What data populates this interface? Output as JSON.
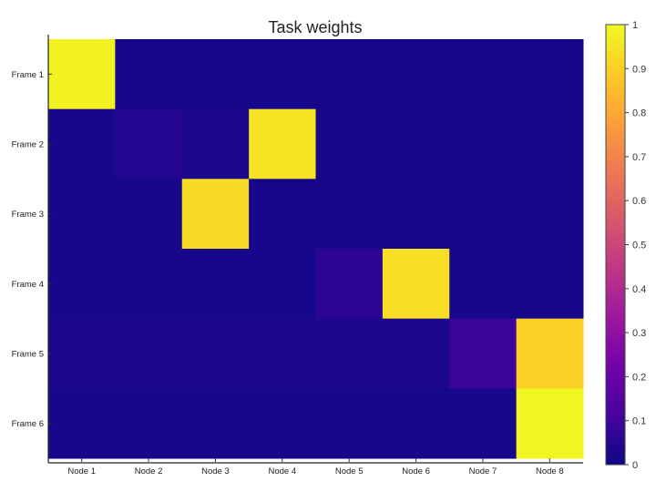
{
  "chart_data": {
    "type": "heatmap",
    "title": "Task weights",
    "x_categories": [
      "Node 1",
      "Node 2",
      "Node 3",
      "Node 4",
      "Node 5",
      "Node 6",
      "Node 7",
      "Node 8"
    ],
    "y_categories": [
      "Frame 1",
      "Frame 2",
      "Frame 3",
      "Frame 4",
      "Frame 5",
      "Frame 6"
    ],
    "values": [
      [
        0.98,
        0.02,
        0.02,
        0.02,
        0.02,
        0.02,
        0.02,
        0.02
      ],
      [
        0.02,
        0.04,
        0.03,
        0.95,
        0.02,
        0.02,
        0.02,
        0.02
      ],
      [
        0.02,
        0.02,
        0.93,
        0.02,
        0.02,
        0.02,
        0.02,
        0.02
      ],
      [
        0.02,
        0.02,
        0.02,
        0.02,
        0.06,
        0.94,
        0.02,
        0.02
      ],
      [
        0.03,
        0.03,
        0.03,
        0.03,
        0.03,
        0.03,
        0.09,
        0.9
      ],
      [
        0.02,
        0.02,
        0.02,
        0.02,
        0.02,
        0.02,
        0.02,
        0.99
      ]
    ],
    "colorscale": "plasma",
    "zlim": [
      0,
      1
    ],
    "colorbar_ticks": [
      "0",
      "0.1",
      "0.2",
      "0.3",
      "0.4",
      "0.5",
      "0.6",
      "0.7",
      "0.8",
      "0.9",
      "1"
    ],
    "grid": false,
    "colorbar_position": "right"
  }
}
